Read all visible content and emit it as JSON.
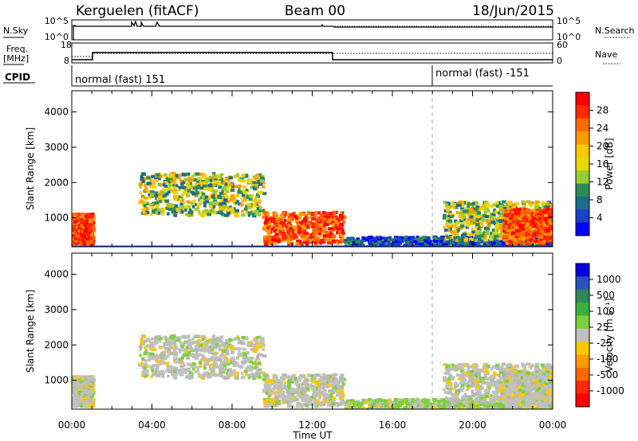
{
  "header": {
    "station": "Kerguelen (fitACF)",
    "beam": "Beam 00",
    "date": "18/Jun/2015"
  },
  "noise_panel": {
    "left_label": "N.Sky",
    "right_label": "N.Search",
    "left_ticks": [
      "10^5",
      "10^0"
    ],
    "right_ticks": [
      "10^5",
      "10^0"
    ]
  },
  "freq_panel": {
    "left_label_1": "Freq.",
    "left_label_2": "[MHz]",
    "right_label": "Nave",
    "left_ticks": [
      "18",
      "8"
    ],
    "right_ticks": [
      "60",
      "0"
    ]
  },
  "cpid": {
    "label": "CPID",
    "modes": [
      {
        "text": "normal (fast) 151",
        "start_hour": 0
      },
      {
        "text": "normal (fast) -151",
        "start_hour": 18
      }
    ]
  },
  "chart_data": [
    {
      "type": "heatmap",
      "panel": "power",
      "ylabel": "Slant Range [km]",
      "xlabel": "",
      "colorbar_label": "Power [dB]",
      "colorbar_ticks": [
        "28",
        "24",
        "20",
        "16",
        "12",
        "8",
        "4"
      ],
      "colorbar_colors": [
        "#ff0000",
        "#ff2a00",
        "#ff6a00",
        "#ff9b00",
        "#ffc800",
        "#e8d800",
        "#9acd32",
        "#2e8b57",
        "#1e6b8a",
        "#1a3fc8",
        "#0000ff"
      ],
      "y_ticks": [
        "4000",
        "3000",
        "2000",
        "1000"
      ],
      "ylim": [
        180,
        4600
      ],
      "regions": [
        {
          "t0": 0.0,
          "t1": 1.0,
          "r0": 300,
          "r1": 1150,
          "level": "high"
        },
        {
          "t0": 3.3,
          "t1": 9.5,
          "r0": 1100,
          "r1": 2300,
          "level": "medium"
        },
        {
          "t0": 9.5,
          "t1": 13.5,
          "r0": 300,
          "r1": 1200,
          "level": "high"
        },
        {
          "t0": 13.5,
          "t1": 24.0,
          "r0": 180,
          "r1": 500,
          "level": "low"
        },
        {
          "t0": 18.5,
          "t1": 24.0,
          "r0": 400,
          "r1": 1500,
          "level": "medium"
        },
        {
          "t0": 21.5,
          "t1": 24.0,
          "r0": 300,
          "r1": 1300,
          "level": "high"
        }
      ]
    },
    {
      "type": "heatmap",
      "panel": "velocity",
      "ylabel": "Slant Range [km]",
      "xlabel": "Time UT",
      "colorbar_label": "Velocity [m s⁻¹]",
      "colorbar_ticks": [
        "1000",
        "500",
        "100",
        "25",
        "-25",
        "-100",
        "-500",
        "-1000"
      ],
      "colorbar_colors": [
        "#0000e0",
        "#2a52be",
        "#2e8b57",
        "#3cb043",
        "#7cd03c",
        "#c0c0c0",
        "#ffc800",
        "#ff9b00",
        "#ff6a00",
        "#ff2a00",
        "#ff0000"
      ],
      "y_ticks": [
        "4000",
        "3000",
        "2000",
        "1000"
      ],
      "x_ticks": [
        "00:00",
        "04:00",
        "08:00",
        "12:00",
        "16:00",
        "20:00",
        "00:00"
      ],
      "ylim": [
        180,
        4600
      ],
      "xlim": [
        0,
        24
      ]
    }
  ]
}
